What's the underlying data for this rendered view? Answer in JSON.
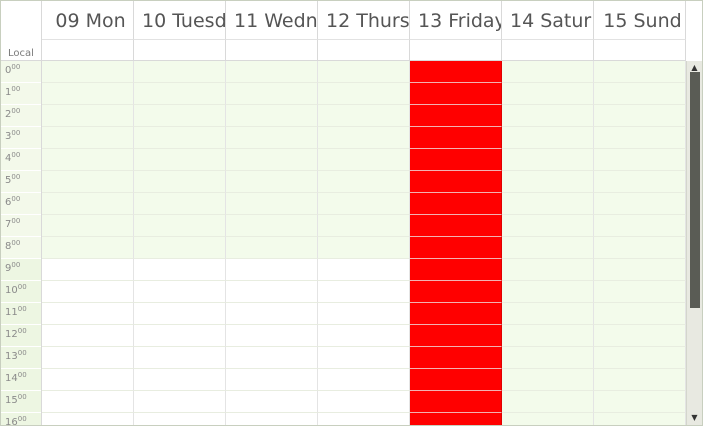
{
  "scheduler": {
    "timezone_label": "Local",
    "days": [
      {
        "label": "09 Mon",
        "weekend": false,
        "busy": false
      },
      {
        "label": "10 Tuesd",
        "weekend": false,
        "busy": false
      },
      {
        "label": "11 Wedn",
        "weekend": false,
        "busy": false
      },
      {
        "label": "12 Thurs",
        "weekend": false,
        "busy": false
      },
      {
        "label": "13 Friday",
        "weekend": false,
        "busy": true
      },
      {
        "label": "14 Satur",
        "weekend": true,
        "busy": false
      },
      {
        "label": "15 Sund",
        "weekend": true,
        "busy": false
      }
    ],
    "hours": [
      {
        "h": "0",
        "m": "00"
      },
      {
        "h": "1",
        "m": "00"
      },
      {
        "h": "2",
        "m": "00"
      },
      {
        "h": "3",
        "m": "00"
      },
      {
        "h": "4",
        "m": "00"
      },
      {
        "h": "5",
        "m": "00"
      },
      {
        "h": "6",
        "m": "00"
      },
      {
        "h": "7",
        "m": "00"
      },
      {
        "h": "8",
        "m": "00"
      },
      {
        "h": "9",
        "m": "00"
      },
      {
        "h": "10",
        "m": "00"
      },
      {
        "h": "11",
        "m": "00"
      },
      {
        "h": "12",
        "m": "00"
      },
      {
        "h": "13",
        "m": "00"
      },
      {
        "h": "14",
        "m": "00"
      },
      {
        "h": "15",
        "m": "00"
      },
      {
        "h": "16",
        "m": "00"
      }
    ],
    "working_hours_start": 9,
    "colors": {
      "busy": "#ff0000",
      "off_hours_shade": "#f3fbeb",
      "working_hours": "#ffffff"
    },
    "scrollbar": {
      "up_icon": "scroll-up-arrow-icon",
      "down_icon": "scroll-down-arrow-icon",
      "up_glyph": "▲",
      "down_glyph": "▼"
    }
  }
}
